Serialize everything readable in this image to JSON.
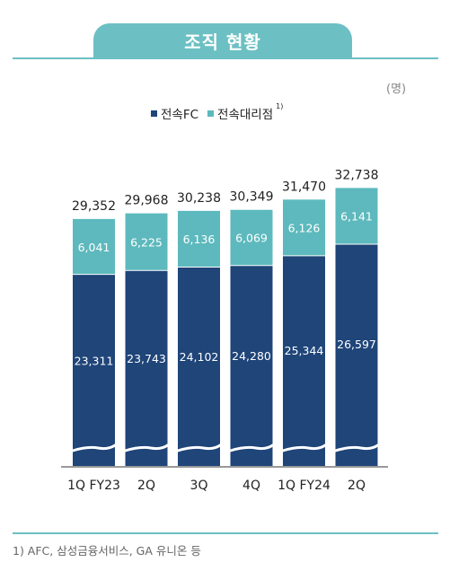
{
  "header": {
    "title": "조직 현황"
  },
  "unit": "(명)",
  "legend": {
    "items": [
      {
        "label": "전속FC",
        "color": "#1f4579"
      },
      {
        "label": "전속대리점",
        "color": "#5db9bd",
        "footnote_mark": "1)"
      }
    ]
  },
  "footnote": "1) AFC, 삼성금융서비스, GA 유니온 등",
  "chart_data": {
    "type": "bar",
    "stacked": true,
    "categories": [
      "1Q FY23",
      "2Q",
      "3Q",
      "4Q",
      "1Q FY24",
      "2Q"
    ],
    "series": [
      {
        "name": "전속FC",
        "values": [
          23311,
          23743,
          24102,
          24280,
          25344,
          26597
        ],
        "color": "#1f4579"
      },
      {
        "name": "전속대리점",
        "values": [
          6041,
          6225,
          6136,
          6069,
          6126,
          6141
        ],
        "color": "#5db9bd"
      }
    ],
    "totals": [
      29352,
      29968,
      30238,
      30349,
      31470,
      32738
    ],
    "axis_break": true
  }
}
